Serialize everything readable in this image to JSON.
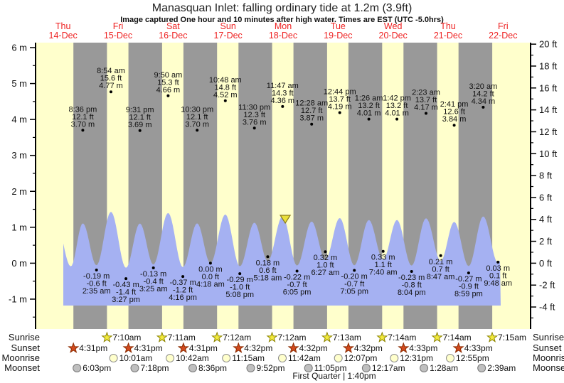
{
  "header": {
    "title": "Manasquan Inlet: falling  ordinary tide at 1.2m (3.9ft)",
    "subtitle": "Image captured One hour and 10 minutes after high water. Times are EST (UTC -5.0hrs)"
  },
  "astro_labels": {
    "sunrise": "Sunrise",
    "sunset": "Sunset",
    "moonrise": "Moonrise",
    "moonset": "Moonset"
  },
  "chart_data": {
    "type": "line",
    "title": "Manasquan Inlet: falling  ordinary tide at 1.2m (3.9ft)",
    "subtitle": "Image captured One hour and 10 minutes after high water. Times are EST (UTC -5.0hrs)",
    "moon_phase": "First Quarter | 1:40pm",
    "y_axis_left": {
      "unit": "m",
      "major_ticks": [
        6,
        5,
        4,
        3,
        2,
        1,
        0,
        -1
      ]
    },
    "y_axis_right": {
      "unit": "ft",
      "major_ticks": [
        20,
        18,
        16,
        14,
        12,
        10,
        8,
        6,
        4,
        2,
        0,
        -2,
        -4
      ]
    },
    "colors": {
      "day": "#ffffcc",
      "night": "#999999",
      "water": "#a5b1f2",
      "day_label": "#ee2222",
      "marker": "#eae03c",
      "marker_border": "#8a7a1a",
      "sunrise_fill": "#f2ea3d",
      "sunrise_stroke": "#8c8400",
      "sunset_fill": "#d24a1e",
      "sunset_stroke": "#8c2b00",
      "moonrise_fill": "#ffffcc",
      "moonrise_stroke": "#8c8c8c",
      "moonset_fill": "#bfbfbf",
      "moonset_stroke": "#777777"
    },
    "days": [
      {
        "name": "Thu",
        "date": "14-Dec",
        "sunrise": null,
        "sunset": "4:31 pm",
        "moonrise": null,
        "moonset": "6:03 pm"
      },
      {
        "name": "Fri",
        "date": "15-Dec",
        "sunrise": "7:10 am",
        "sunset": "4:31 pm",
        "moonrise": "10:01 am",
        "moonset": "7:18 pm"
      },
      {
        "name": "Sat",
        "date": "16-Dec",
        "sunrise": "7:11 am",
        "sunset": "4:31 pm",
        "moonrise": "10:42 am",
        "moonset": "8:36 pm"
      },
      {
        "name": "Sun",
        "date": "17-Dec",
        "sunrise": "7:12 am",
        "sunset": "4:32 pm",
        "moonrise": "11:15 am",
        "moonset": "9:52 pm"
      },
      {
        "name": "Mon",
        "date": "18-Dec",
        "sunrise": "7:12 am",
        "sunset": "4:32 pm",
        "moonrise": "11:42 am",
        "moonset": "11:05 pm"
      },
      {
        "name": "Tue",
        "date": "19-Dec",
        "sunrise": "7:13 am",
        "sunset": "4:32 pm",
        "moonrise": "12:07 pm",
        "moonset": null
      },
      {
        "name": "Wed",
        "date": "20-Dec",
        "sunrise": "7:14 am",
        "sunset": "4:33 pm",
        "moonrise": "12:31 pm",
        "moonset": "12:17 am"
      },
      {
        "name": "Thu",
        "date": "21-Dec",
        "sunrise": "7:14 am",
        "sunset": "4:33 pm",
        "moonrise": "12:55 pm",
        "moonset": "1:28 am"
      },
      {
        "name": "Fri",
        "date": "22-Dec",
        "sunrise": "7:15 am",
        "sunset": null,
        "moonrise": null,
        "moonset": "2:39 am"
      }
    ],
    "astro_time_display": {
      "sunrise": [
        "7:10am",
        "7:11am",
        "7:12am",
        "7:12am",
        "7:13am",
        "7:14am",
        "7:14am",
        "7:15am"
      ],
      "sunset": [
        "4:31pm",
        "4:31pm",
        "4:31pm",
        "4:32pm",
        "4:32pm",
        "4:32pm",
        "4:33pm",
        "4:33pm"
      ],
      "moonrise": [
        "10:01am",
        "10:42am",
        "11:15am",
        "11:42am",
        "12:07pm",
        "12:31pm",
        "12:55pm"
      ],
      "moonset": [
        "6:03pm",
        "7:18pm",
        "8:36pm",
        "9:52pm",
        "11:05pm",
        "12:17am",
        "1:28am",
        "2:39am"
      ]
    },
    "tides": [
      {
        "offchart": true,
        "t_hours": 8.4,
        "h": 4.4
      },
      {
        "offchart": true,
        "t_hours": 15.4,
        "h": -0.3
      },
      {
        "type": "high",
        "day": 0,
        "time": "8:36 pm",
        "height_ft": "12.1 ft",
        "height_m": "3.70 m",
        "h": 3.7
      },
      {
        "type": "low",
        "day": 1,
        "time": "2:35 am",
        "height_ft": "-0.6 ft",
        "height_m": "-0.19 m",
        "h": -0.19
      },
      {
        "type": "high",
        "day": 1,
        "time": "8:54 am",
        "height_ft": "15.6 ft",
        "height_m": "4.77 m",
        "h": 4.77
      },
      {
        "type": "low",
        "day": 1,
        "time": "3:27 pm",
        "height_ft": "-1.4 ft",
        "height_m": "-0.43 m",
        "h": -0.43
      },
      {
        "type": "high",
        "day": 1,
        "time": "9:31 pm",
        "height_ft": "12.1 ft",
        "height_m": "3.69 m",
        "h": 3.69
      },
      {
        "type": "low",
        "day": 2,
        "time": "3:25 am",
        "height_ft": "-0.4 ft",
        "height_m": "-0.13 m",
        "h": -0.13
      },
      {
        "type": "high",
        "day": 2,
        "time": "9:50 am",
        "height_ft": "15.3 ft",
        "height_m": "4.66 m",
        "h": 4.66
      },
      {
        "type": "low",
        "day": 2,
        "time": "4:16 pm",
        "height_ft": "-1.2 ft",
        "height_m": "-0.37 m",
        "h": -0.37
      },
      {
        "type": "high",
        "day": 2,
        "time": "10:30 pm",
        "height_ft": "12.1 ft",
        "height_m": "3.70 m",
        "h": 3.7
      },
      {
        "type": "low",
        "day": 3,
        "time": "4:18 am",
        "height_ft": "0.0 ft",
        "height_m": "0.00 m",
        "h": 0.0
      },
      {
        "type": "high",
        "day": 3,
        "time": "10:48 am",
        "height_ft": "14.8 ft",
        "height_m": "4.52 m",
        "h": 4.52
      },
      {
        "type": "low",
        "day": 3,
        "time": "5:08 pm",
        "height_ft": "-1.0 ft",
        "height_m": "-0.29 m",
        "h": -0.29
      },
      {
        "type": "high",
        "day": 3,
        "time": "11:30 pm",
        "height_ft": "12.3 ft",
        "height_m": "3.76 m",
        "h": 3.76
      },
      {
        "type": "low",
        "day": 4,
        "time": "5:18 am",
        "height_ft": "0.6 ft",
        "height_m": "0.18 m",
        "h": 0.18
      },
      {
        "type": "high",
        "day": 4,
        "time": "11:47 am",
        "height_ft": "14.3 ft",
        "height_m": "4.36 m",
        "h": 4.36
      },
      {
        "type": "low",
        "day": 4,
        "time": "6:05 pm",
        "height_ft": "-0.7 ft",
        "height_m": "-0.22 m",
        "h": -0.22
      },
      {
        "type": "high",
        "day": 5,
        "time": "12:28 am",
        "height_ft": "12.7 ft",
        "height_m": "3.87 m",
        "h": 3.87
      },
      {
        "type": "low",
        "day": 5,
        "time": "6:27 am",
        "height_ft": "1.0 ft",
        "height_m": "0.32 m",
        "h": 0.32
      },
      {
        "type": "high",
        "day": 5,
        "time": "12:44 pm",
        "height_ft": "13.7 ft",
        "height_m": "4.19 m",
        "h": 4.19
      },
      {
        "type": "low",
        "day": 5,
        "time": "7:05 pm",
        "height_ft": "-0.7 ft",
        "height_m": "-0.20 m",
        "h": -0.2
      },
      {
        "type": "high",
        "day": 6,
        "time": "1:26 am",
        "height_ft": "13.2 ft",
        "height_m": "4.01 m",
        "h": 4.01
      },
      {
        "type": "low",
        "day": 6,
        "time": "7:40 am",
        "height_ft": "1.1 ft",
        "height_m": "0.33 m",
        "h": 0.33
      },
      {
        "type": "high",
        "day": 6,
        "time": "1:42 pm",
        "height_ft": "13.2 ft",
        "height_m": "4.01 m",
        "h": 4.01
      },
      {
        "type": "low",
        "day": 6,
        "time": "8:04 pm",
        "height_ft": "-0.8 ft",
        "height_m": "-0.23 m",
        "h": -0.23
      },
      {
        "type": "high",
        "day": 7,
        "time": "2:23 am",
        "height_ft": "13.7 ft",
        "height_m": "4.17 m",
        "h": 4.17
      },
      {
        "type": "low",
        "day": 7,
        "time": "8:47 am",
        "height_ft": "0.7 ft",
        "height_m": "0.21 m",
        "h": 0.21
      },
      {
        "type": "high",
        "day": 7,
        "time": "2:41 pm",
        "height_ft": "12.6 ft",
        "height_m": "3.84 m",
        "h": 3.84
      },
      {
        "type": "low",
        "day": 7,
        "time": "8:59 pm",
        "height_ft": "-0.9 ft",
        "height_m": "-0.27 m",
        "h": -0.27
      },
      {
        "type": "high",
        "day": 8,
        "time": "3:20 am",
        "height_ft": "14.2 ft",
        "height_m": "4.34 m",
        "h": 4.34
      },
      {
        "type": "low",
        "day": 8,
        "time": "9:48 am",
        "height_ft": "0.1 ft",
        "height_m": "0.03 m",
        "h": 0.03
      },
      {
        "offchart": true,
        "t_hours": 208.0,
        "h": 4.3
      }
    ],
    "current_marker": {
      "description": "current time marker (1h10m after high water)",
      "day": 4,
      "time": "12:57 pm"
    }
  }
}
